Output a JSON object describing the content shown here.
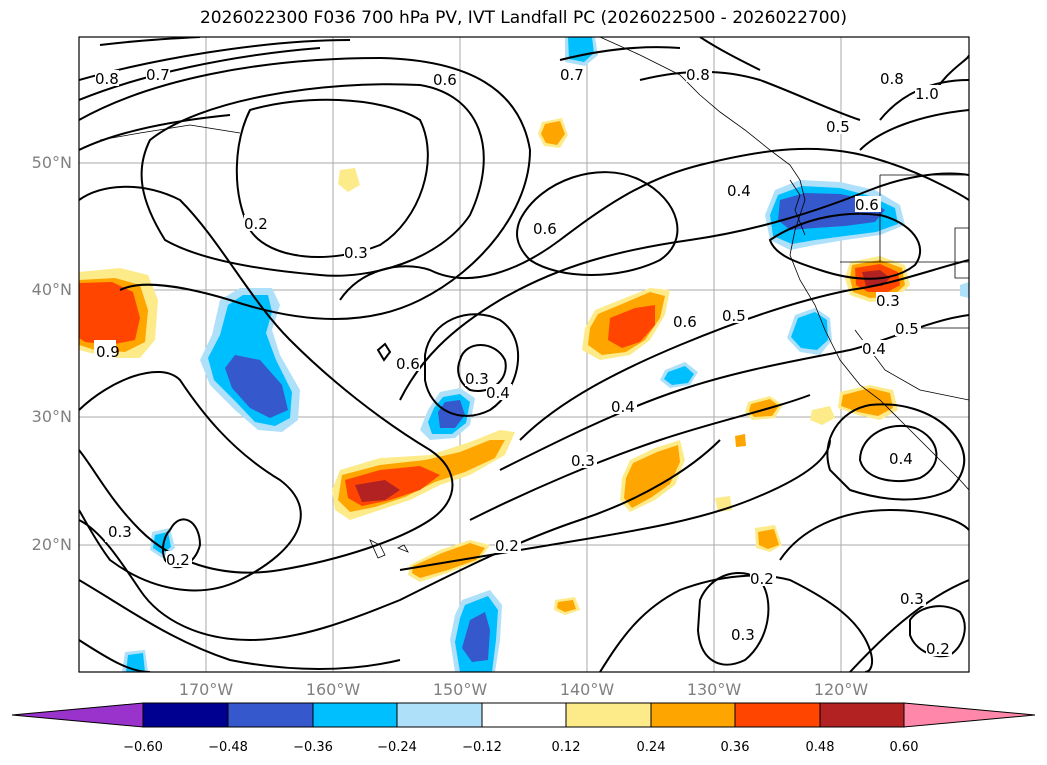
{
  "title": "2026022300 F036 700 hPa PV, IVT Landfall PC (2026022500 - 2026022700)",
  "map": {
    "lat_labels": [
      "50°N",
      "40°N",
      "30°N",
      "20°N"
    ],
    "lon_labels": [
      "170°W",
      "160°W",
      "150°W",
      "140°W",
      "130°W",
      "120°W"
    ],
    "contour_labels": [
      "0.8",
      "0.7",
      "0.6",
      "0.7",
      "0.8",
      "0.8",
      "1.0",
      "0.5",
      "0.2",
      "0.3",
      "0.6",
      "0.4",
      "0.6",
      "0.6",
      "0.3",
      "0.4",
      "0.5",
      "0.6",
      "0.3",
      "0.4",
      "0.5",
      "0.4",
      "0.3",
      "0.2",
      "0.2",
      "0.3",
      "0.2",
      "0.3",
      "0.2",
      "0.3",
      "0.4",
      "0.9"
    ]
  },
  "colorbar": {
    "ticks": [
      "−0.60",
      "−0.48",
      "−0.36",
      "−0.24",
      "−0.12",
      "0.12",
      "0.24",
      "0.36",
      "0.48",
      "0.60"
    ],
    "colors": [
      "#9933cc",
      "#000090",
      "#3558cc",
      "#00bfff",
      "#aee0fa",
      "#ffffff",
      "#fdeb8a",
      "#ffa500",
      "#ff4500",
      "#b22222",
      "#ff88aa"
    ]
  }
}
